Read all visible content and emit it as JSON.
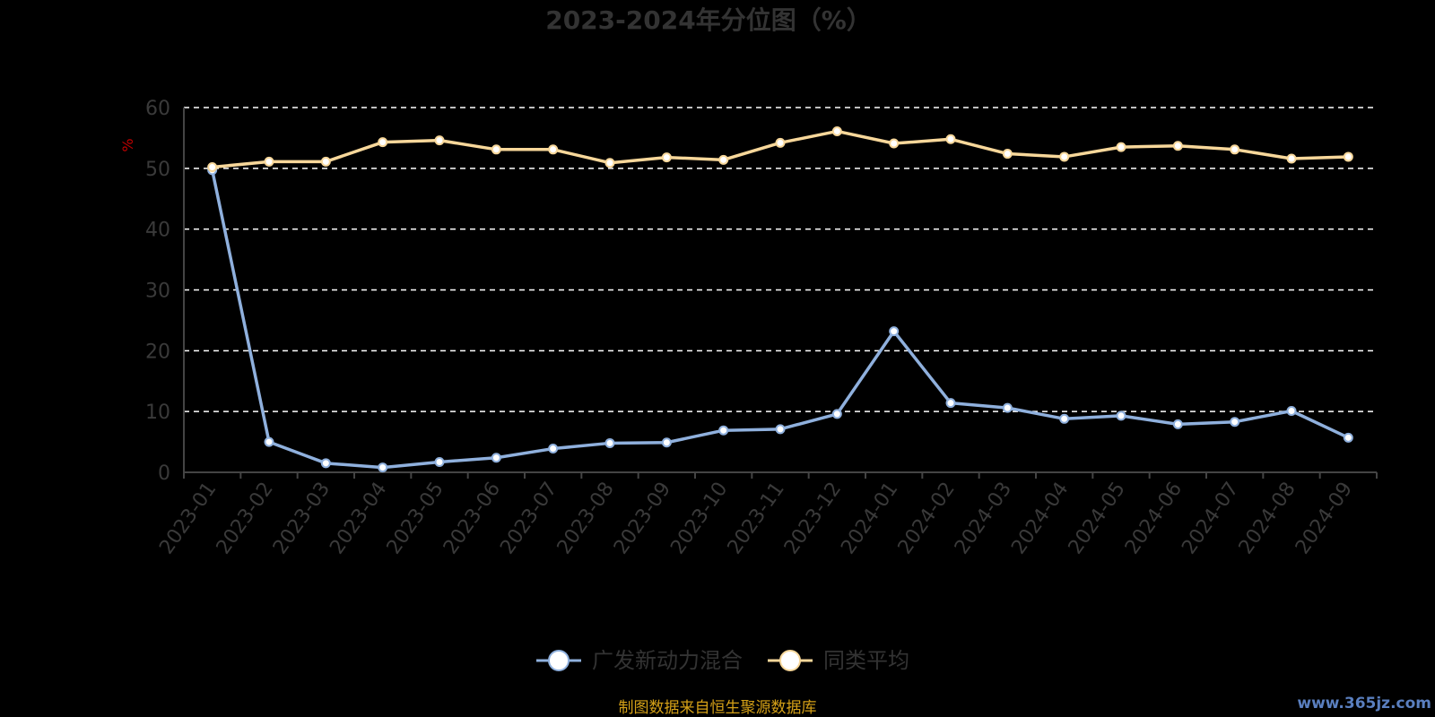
{
  "chart_data": {
    "type": "line",
    "title": "2023-2024年分位图（%）",
    "ylabel": "%",
    "xlabel": "",
    "ylim": [
      0,
      60
    ],
    "yticks": [
      0,
      10,
      20,
      30,
      40,
      50,
      60
    ],
    "grid": true,
    "legend_position": "bottom",
    "categories": [
      "2023-01",
      "2023-02",
      "2023-03",
      "2023-04",
      "2023-05",
      "2023-06",
      "2023-07",
      "2023-08",
      "2023-09",
      "2023-10",
      "2023-11",
      "2023-12",
      "2024-01",
      "2024-02",
      "2024-03",
      "2024-04",
      "2024-05",
      "2024-06",
      "2024-07",
      "2024-08",
      "2024-09"
    ],
    "series": [
      {
        "name": "广发新动力混合",
        "color": "#8fb0dd",
        "values": [
          49.7,
          5.0,
          1.5,
          0.8,
          1.7,
          2.4,
          3.9,
          4.8,
          4.9,
          6.9,
          7.1,
          9.6,
          23.2,
          11.4,
          10.6,
          8.8,
          9.3,
          7.9,
          8.3,
          10.1,
          5.7
        ]
      },
      {
        "name": "同类平均",
        "color": "#f7d79a",
        "values": [
          50.2,
          51.1,
          51.1,
          54.3,
          54.6,
          53.1,
          53.1,
          50.9,
          51.8,
          51.4,
          54.2,
          56.1,
          54.1,
          54.8,
          52.4,
          51.9,
          53.5,
          53.7,
          53.1,
          51.6,
          51.9
        ]
      }
    ]
  },
  "footer": {
    "source_text": "制图数据来自恒生聚源数据库",
    "watermark": "www.365jz.com"
  }
}
